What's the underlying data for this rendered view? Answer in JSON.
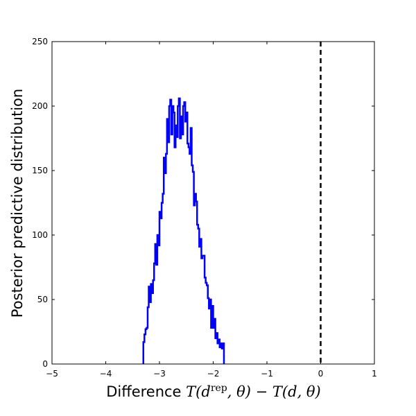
{
  "chart_data": {
    "type": "histogram-step",
    "xlabel_prefix": "Difference",
    "xlabel_math": {
      "T1": "T(",
      "d": "d",
      "sup": "rep",
      "mid": ", θ) − ",
      "T2": "T(d, θ)"
    },
    "ylabel": "Posterior predictive distribution",
    "xlim": [
      -5,
      1
    ],
    "ylim": [
      0,
      250
    ],
    "xticks": [
      -5,
      -4,
      -3,
      -2,
      -1,
      0,
      1
    ],
    "xtick_labels": [
      "−5",
      "−4",
      "−3",
      "−2",
      "−1",
      "0",
      "1"
    ],
    "yticks": [
      0,
      50,
      100,
      150,
      200,
      250
    ],
    "ytick_labels": [
      "0",
      "50",
      "100",
      "150",
      "200",
      "250"
    ],
    "grid": false,
    "series_color": "#0000ff",
    "reference_line": {
      "x": 0,
      "style": "dashed",
      "color": "#000000"
    },
    "bins": {
      "start": -3.3,
      "width": 0.02,
      "counts": [
        17,
        23,
        27,
        28,
        44,
        60,
        48,
        62,
        55,
        65,
        78,
        93,
        77,
        100,
        92,
        118,
        113,
        125,
        132,
        160,
        148,
        163,
        190,
        172,
        200,
        205,
        178,
        200,
        195,
        168,
        185,
        176,
        200,
        206,
        175,
        192,
        178,
        200,
        203,
        188,
        195,
        171,
        168,
        163,
        183,
        154,
        149,
        123,
        132,
        126,
        108,
        105,
        91,
        97,
        82,
        84,
        84,
        67,
        63,
        61,
        51,
        43,
        50,
        28,
        45,
        28,
        35,
        20,
        24,
        16,
        19,
        13,
        16,
        12,
        16
      ]
    }
  }
}
